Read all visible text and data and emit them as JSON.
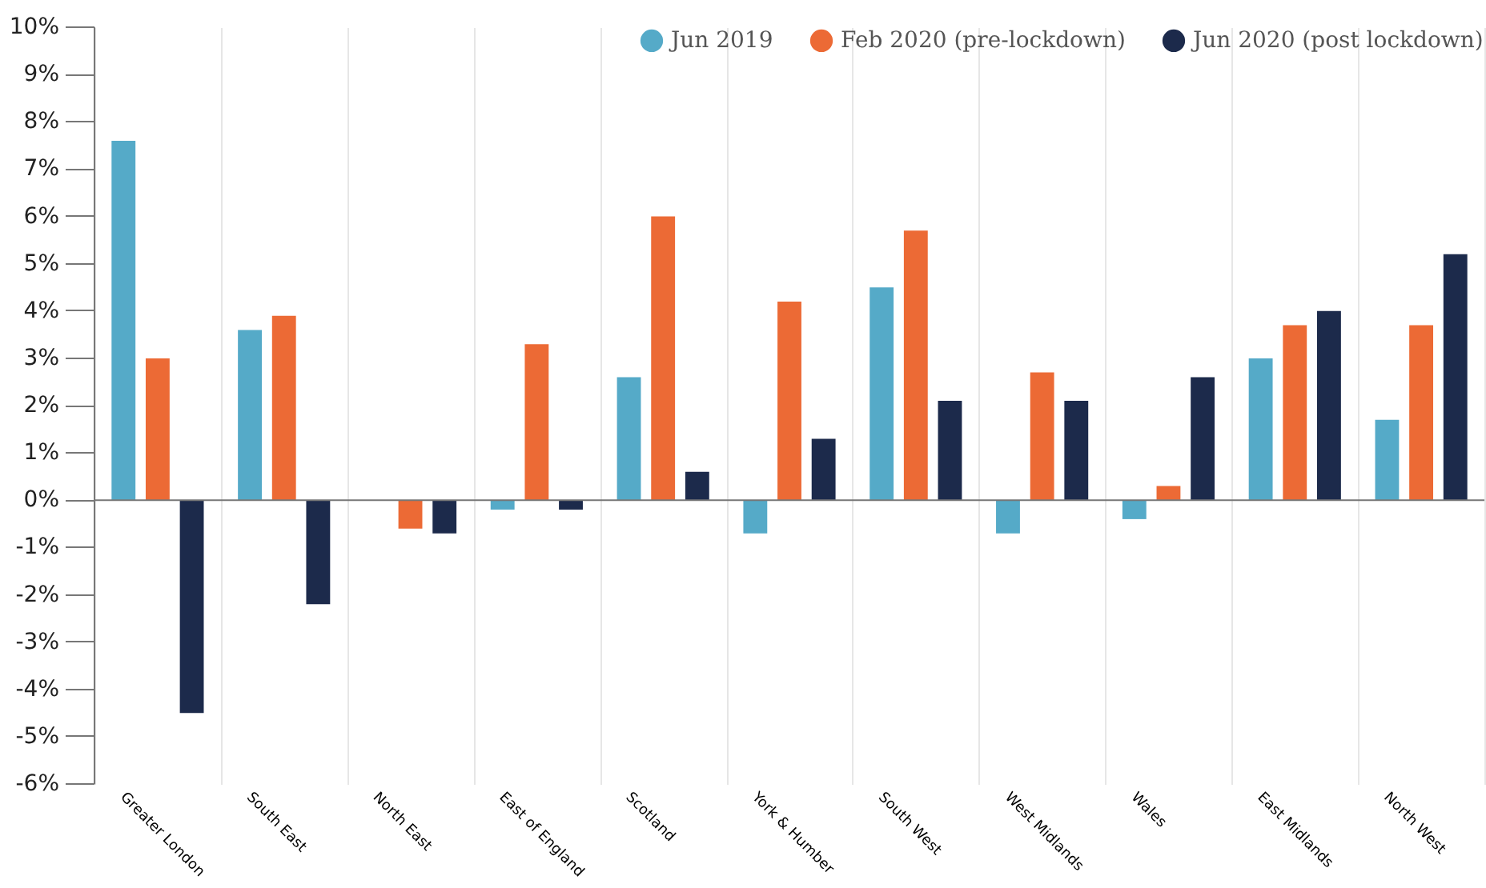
{
  "chart_data": {
    "type": "bar",
    "categories": [
      "Greater London",
      "South East",
      "North East",
      "East of England",
      "Scotland",
      "York & Humber",
      "South West",
      "West Midlands",
      "Wales",
      "East Midlands",
      "North West"
    ],
    "series": [
      {
        "name": "Jun 2019",
        "color": "#55aac8",
        "values": [
          7.6,
          3.6,
          0,
          -0.2,
          2.6,
          -0.7,
          4.5,
          -0.7,
          -0.4,
          3.0,
          1.7
        ]
      },
      {
        "name": "Feb 2020 (pre-lockdown)",
        "color": "#ec6a35",
        "values": [
          3.0,
          3.9,
          -0.6,
          3.3,
          6.0,
          4.2,
          5.7,
          2.7,
          0.3,
          3.7,
          3.7
        ]
      },
      {
        "name": "Jun 2020 (post lockdown)",
        "color": "#1c2a4b",
        "values": [
          -4.5,
          -2.2,
          -0.7,
          -0.2,
          0.6,
          1.3,
          2.1,
          2.1,
          2.6,
          4.0,
          5.2
        ]
      }
    ],
    "ylim": [
      -6,
      10
    ],
    "yticks": [
      {
        "value": -6,
        "label": "-6%"
      },
      {
        "value": -5,
        "label": "-5%"
      },
      {
        "value": -4,
        "label": "-4%"
      },
      {
        "value": -3,
        "label": "-3%"
      },
      {
        "value": -2,
        "label": "-2%"
      },
      {
        "value": -1,
        "label": "-1%"
      },
      {
        "value": 0,
        "label": "0%"
      },
      {
        "value": 1,
        "label": "1%"
      },
      {
        "value": 2,
        "label": "2%"
      },
      {
        "value": 3,
        "label": "3%"
      },
      {
        "value": 4,
        "label": "4%"
      },
      {
        "value": 5,
        "label": "5%"
      },
      {
        "value": 6,
        "label": "6%"
      },
      {
        "value": 7,
        "label": "7%"
      },
      {
        "value": 8,
        "label": "8%"
      },
      {
        "value": 9,
        "label": "9%"
      },
      {
        "value": 10,
        "label": "10%"
      }
    ],
    "grid": "x",
    "legend": "top right"
  }
}
